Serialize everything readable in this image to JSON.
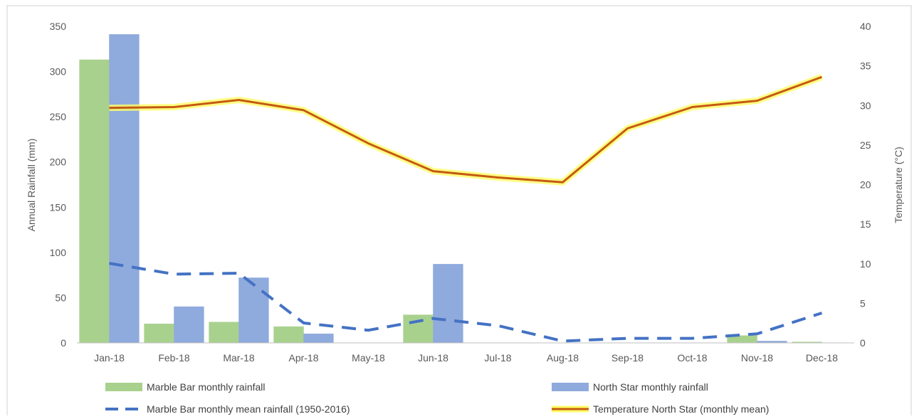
{
  "chart_data": {
    "type": "bar",
    "title": "",
    "categories": [
      "Jan-18",
      "Feb-18",
      "Mar-18",
      "Apr-18",
      "May-18",
      "Jun-18",
      "Jul-18",
      "Aug-18",
      "Sep-18",
      "Oct-18",
      "Nov-18",
      "Dec-18"
    ],
    "ylabel": "Annual Rainfall (mm)",
    "ylabel_right": "Temperature (°C)",
    "ylim": [
      0,
      350
    ],
    "ylim_right": [
      0,
      40
    ],
    "yticks": [
      0,
      50,
      100,
      150,
      200,
      250,
      300,
      350
    ],
    "yticks_right": [
      0,
      5,
      10,
      15,
      20,
      25,
      30,
      35,
      40
    ],
    "grid": false,
    "legend_position": "bottom",
    "series": [
      {
        "name": "Marble Bar monthly rainfall",
        "type": "bar",
        "axis": "left",
        "color": "#a9d18e",
        "values": [
          313,
          21,
          23,
          18,
          0,
          31,
          0,
          0,
          0,
          0,
          8,
          1
        ]
      },
      {
        "name": "North Star monthly rainfall",
        "type": "bar",
        "axis": "left",
        "color": "#8faadc",
        "values": [
          341,
          40,
          72,
          10,
          0,
          87,
          0,
          0,
          0,
          0,
          2,
          0
        ]
      },
      {
        "name": "Marble Bar monthly mean rainfall (1950-2016)",
        "type": "line",
        "style": "dashed",
        "axis": "left",
        "color": "#4472c4",
        "values": [
          88,
          76,
          77,
          22,
          14,
          27,
          19,
          2,
          5,
          5,
          10,
          33
        ]
      },
      {
        "name": "Temperature North Star (monthly mean)",
        "type": "line",
        "axis": "right",
        "color": "#c55a11",
        "glow_color": "#ffff66",
        "values": [
          29.7,
          29.8,
          30.7,
          29.4,
          25.2,
          21.7,
          20.9,
          20.3,
          27.1,
          29.8,
          30.6,
          33.6
        ]
      }
    ]
  }
}
